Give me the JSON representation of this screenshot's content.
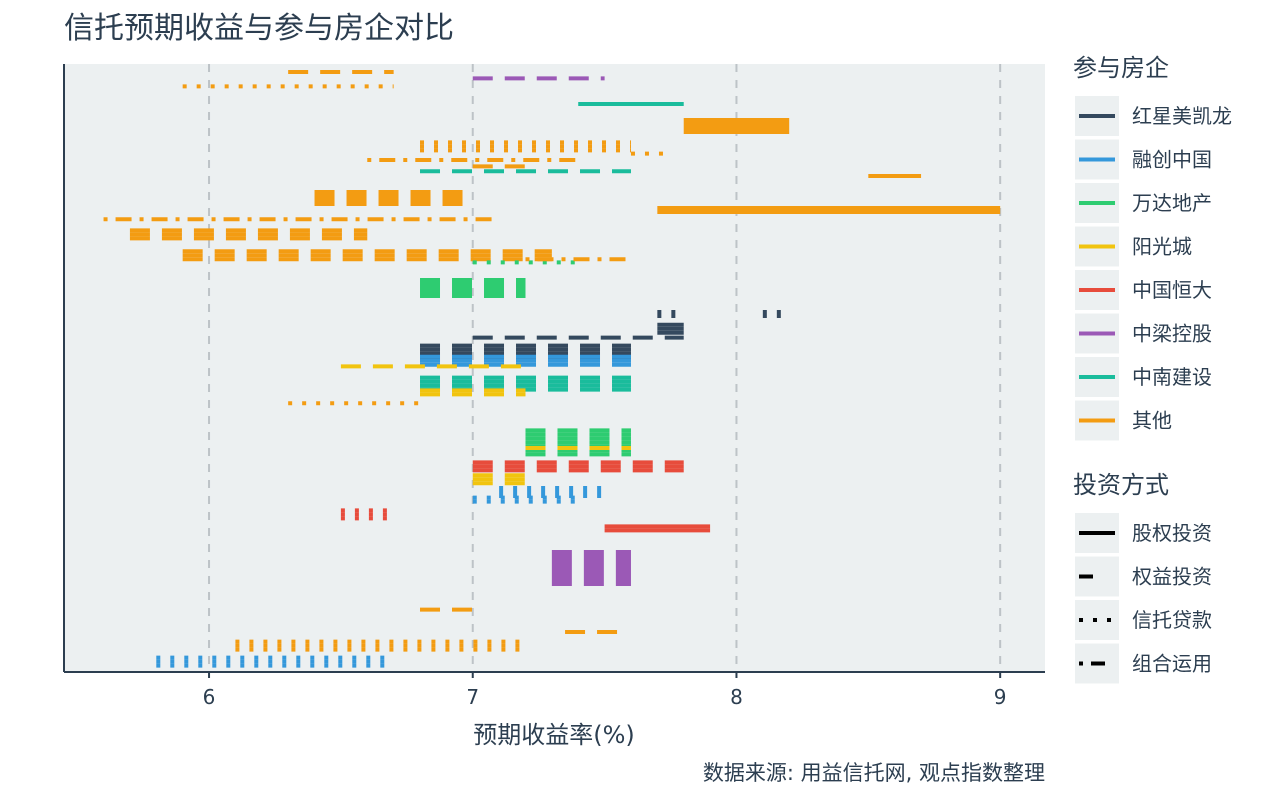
{
  "chart_data": {
    "type": "segment",
    "title": "信托预期收益与参与房企对比",
    "xlabel": "预期收益率(%)",
    "ylabel": "",
    "caption": "数据来源: 用益信托网, 观点指数整理",
    "xlim": [
      5.45,
      9.17
    ],
    "x_ticks": [
      6,
      7,
      8,
      9
    ],
    "grid": "vertical dashed at major ticks",
    "legend_placement": "right",
    "color_legend": {
      "title": "参与房企",
      "entries": [
        {
          "label": "红星美凯龙",
          "color": "#34495e"
        },
        {
          "label": "融创中国",
          "color": "#3498db"
        },
        {
          "label": "万达地产",
          "color": "#2ecc71"
        },
        {
          "label": "阳光城",
          "color": "#f1c40f"
        },
        {
          "label": "中国恒大",
          "color": "#e74c3c"
        },
        {
          "label": "中梁控股",
          "color": "#9b59b6"
        },
        {
          "label": "中南建设",
          "color": "#1abc9c"
        },
        {
          "label": "其他",
          "color": "#f39c12"
        }
      ]
    },
    "linetype_legend": {
      "title": "投资方式",
      "entries": [
        {
          "label": "股权投资",
          "style": "solid"
        },
        {
          "label": "权益投资",
          "style": "dashed"
        },
        {
          "label": "信托贷款",
          "style": "dotted"
        },
        {
          "label": "组合运用",
          "style": "dotdash"
        }
      ]
    },
    "segments": [
      {
        "company": "其他",
        "method": "权益投资",
        "x": [
          6.3,
          6.7
        ],
        "row": 0
      },
      {
        "company": "其他",
        "method": "信托贷款",
        "x": [
          5.9,
          6.7
        ],
        "row": 0.45
      },
      {
        "company": "中梁控股",
        "method": "权益投资",
        "x": [
          7.0,
          7.5
        ],
        "row": 0.2
      },
      {
        "company": "中南建设",
        "method": "股权投资",
        "x": [
          7.4,
          7.8
        ],
        "row": 1.0
      },
      {
        "company": "其他",
        "method": "股权投资",
        "x": [
          7.8,
          8.2
        ],
        "row": 1.5,
        "stack": 4
      },
      {
        "company": "其他",
        "method": "信托贷款",
        "x": [
          6.8,
          7.6
        ],
        "row": 2.2,
        "stack": 3
      },
      {
        "company": "其他",
        "method": "信托贷款",
        "x": [
          7.6,
          7.75
        ],
        "row": 2.55
      },
      {
        "company": "其他",
        "method": "组合运用",
        "x": [
          6.6,
          7.4
        ],
        "row": 2.75
      },
      {
        "company": "其他",
        "method": "权益投资",
        "x": [
          7.0,
          7.2
        ],
        "row": 2.95
      },
      {
        "company": "中南建设",
        "method": "权益投资",
        "x": [
          6.8,
          7.6
        ],
        "row": 3.1
      },
      {
        "company": "其他",
        "method": "股权投资",
        "x": [
          8.5,
          8.7
        ],
        "row": 3.25
      },
      {
        "company": "其他",
        "method": "权益投资",
        "x": [
          6.4,
          7.0
        ],
        "row": 3.75,
        "stack": 4
      },
      {
        "company": "其他",
        "method": "股权投资",
        "x": [
          7.7,
          9.0
        ],
        "row": 4.25,
        "stack": 2
      },
      {
        "company": "其他",
        "method": "组合运用",
        "x": [
          5.6,
          7.1
        ],
        "row": 4.6
      },
      {
        "company": "其他",
        "method": "权益投资",
        "x": [
          5.7,
          6.6
        ],
        "row": 4.95,
        "stack": 3
      },
      {
        "company": "其他",
        "method": "权益投资",
        "x": [
          5.9,
          7.3
        ],
        "row": 5.6,
        "stack": 3
      },
      {
        "company": "万达地产",
        "method": "信托贷款",
        "x": [
          7.0,
          7.4
        ],
        "row": 5.95
      },
      {
        "company": "其他",
        "method": "组合运用",
        "x": [
          7.2,
          7.6
        ],
        "row": 5.85
      },
      {
        "company": "万达地产",
        "method": "权益投资",
        "x": [
          6.8,
          7.2
        ],
        "row": 6.5,
        "stack": 5
      },
      {
        "company": "红星美凯龙",
        "method": "信托贷款",
        "x": [
          7.7,
          7.8
        ],
        "row": 7.5,
        "stack": 2
      },
      {
        "company": "红星美凯龙",
        "method": "股权投资",
        "x": [
          7.7,
          7.8
        ],
        "row": 7.9,
        "stack": 3
      },
      {
        "company": "红星美凯龙",
        "method": "权益投资",
        "x": [
          7.0,
          7.8
        ],
        "row": 8.3
      },
      {
        "company": "红星美凯龙",
        "method": "信托贷款",
        "x": [
          8.1,
          8.2
        ],
        "row": 7.5,
        "stack": 2
      },
      {
        "company": "红星美凯龙",
        "method": "权益投资",
        "x": [
          6.8,
          7.6
        ],
        "row": 8.55,
        "stack": 4
      },
      {
        "company": "融创中国",
        "method": "权益投资",
        "x": [
          6.8,
          7.6
        ],
        "row": 8.9,
        "stack": 3
      },
      {
        "company": "阳光城",
        "method": "权益投资",
        "x": [
          6.5,
          7.2
        ],
        "row": 9.2
      },
      {
        "company": "中南建设",
        "method": "权益投资",
        "x": [
          6.8,
          7.6
        ],
        "row": 9.55,
        "stack": 4
      },
      {
        "company": "阳光城",
        "method": "权益投资",
        "x": [
          6.8,
          7.2
        ],
        "row": 9.95,
        "stack": 2
      },
      {
        "company": "其他",
        "method": "信托贷款",
        "x": [
          6.3,
          6.8
        ],
        "row": 10.35
      },
      {
        "company": "万达地产",
        "method": "权益投资",
        "x": [
          7.2,
          7.6
        ],
        "row": 11.2,
        "stack": 7
      },
      {
        "company": "阳光城",
        "method": "权益投资",
        "x": [
          7.2,
          7.6
        ],
        "row": 11.75
      },
      {
        "company": "中国恒大",
        "method": "权益投资",
        "x": [
          7.0,
          7.8
        ],
        "row": 12.2,
        "stack": 3
      },
      {
        "company": "阳光城",
        "method": "权益投资",
        "x": [
          7.0,
          7.2
        ],
        "row": 12.6,
        "stack": 3
      },
      {
        "company": "融创中国",
        "method": "信托贷款",
        "x": [
          7.1,
          7.5
        ],
        "row": 13.0,
        "stack": 3
      },
      {
        "company": "融创中国",
        "method": "信托贷款",
        "x": [
          7.0,
          7.4
        ],
        "row": 13.3,
        "stack": 2
      },
      {
        "company": "中国恒大",
        "method": "信托贷款",
        "x": [
          6.5,
          6.7
        ],
        "row": 13.7,
        "stack": 3
      },
      {
        "company": "中国恒大",
        "method": "股权投资",
        "x": [
          7.5,
          7.9
        ],
        "row": 14.2,
        "stack": 2
      },
      {
        "company": "中梁控股",
        "method": "权益投资",
        "x": [
          7.3,
          7.6
        ],
        "row": 15.0,
        "stack": 9
      },
      {
        "company": "其他",
        "method": "权益投资",
        "x": [
          6.8,
          7.0
        ],
        "row": 16.8
      },
      {
        "company": "其他",
        "method": "权益投资",
        "x": [
          7.35,
          7.55
        ],
        "row": 17.5
      },
      {
        "company": "其他",
        "method": "信托贷款",
        "x": [
          6.1,
          7.2
        ],
        "row": 17.8,
        "stack": 3
      },
      {
        "company": "融创中国",
        "method": "信托贷款",
        "x": [
          5.8,
          6.7
        ],
        "row": 18.3,
        "stack": 3
      }
    ]
  }
}
